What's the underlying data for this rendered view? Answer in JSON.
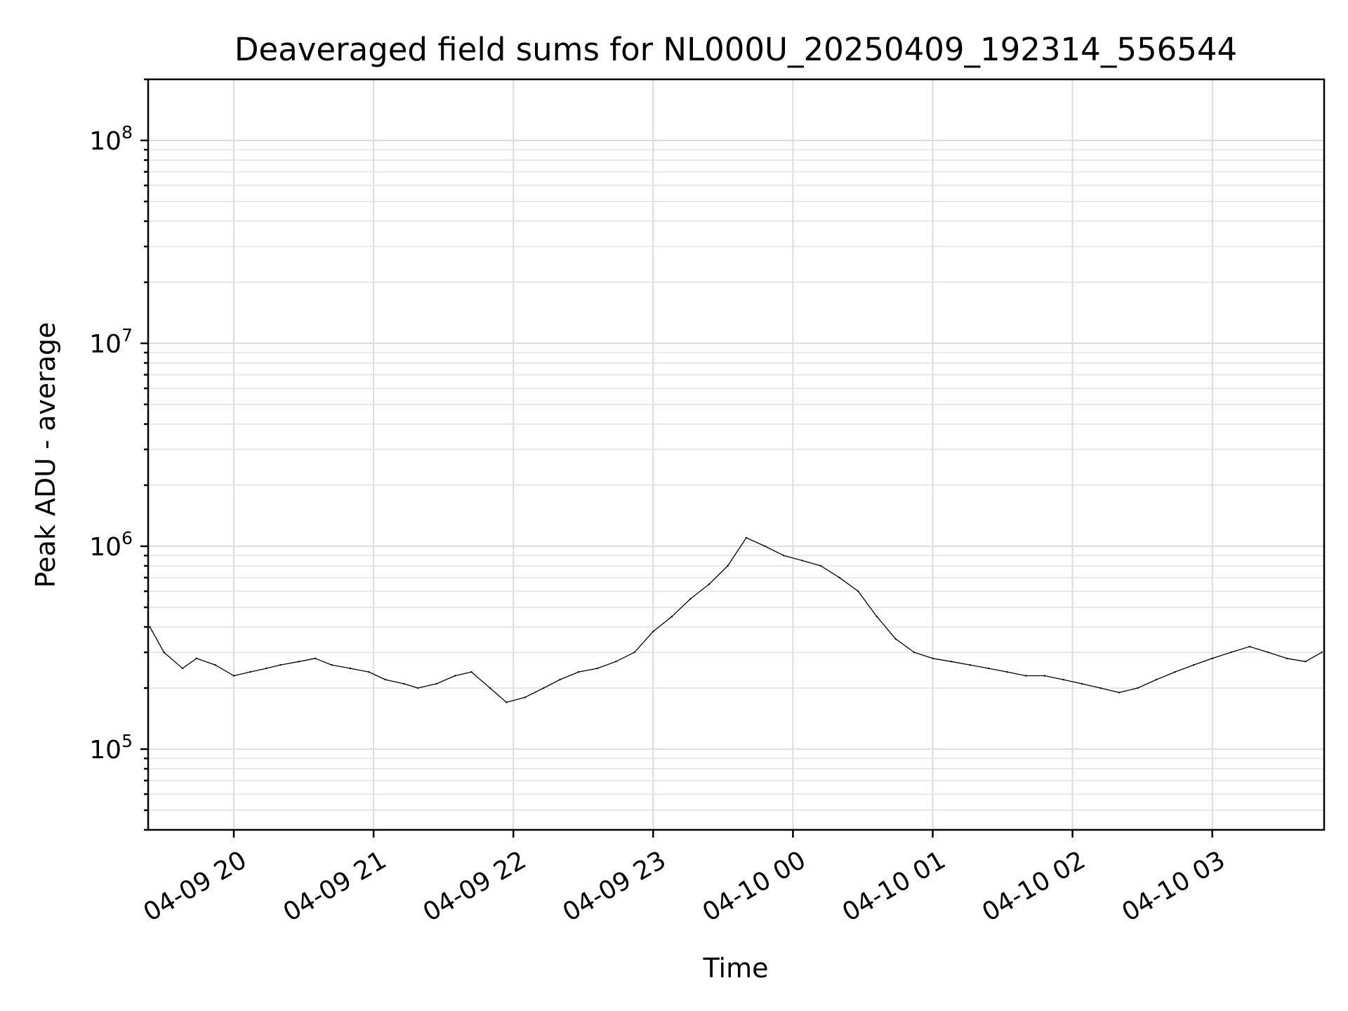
{
  "chart_data": {
    "type": "line",
    "title": "Deaveraged field sums for NL000U_20250409_192314_556544",
    "xlabel": "Time",
    "ylabel": "Peak ADU - average",
    "yscale": "log",
    "ylim": [
      40000,
      200000000
    ],
    "xlim": [
      "2025-04-09 19:23:14",
      "2025-04-10 03:48:00"
    ],
    "x_ticks": [
      {
        "value": "2025-04-09 20:00",
        "label": "04-09 20"
      },
      {
        "value": "2025-04-09 21:00",
        "label": "04-09 21"
      },
      {
        "value": "2025-04-09 22:00",
        "label": "04-09 22"
      },
      {
        "value": "2025-04-09 23:00",
        "label": "04-09 23"
      },
      {
        "value": "2025-04-10 00:00",
        "label": "04-10 00"
      },
      {
        "value": "2025-04-10 01:00",
        "label": "04-10 01"
      },
      {
        "value": "2025-04-10 02:00",
        "label": "04-10 02"
      },
      {
        "value": "2025-04-10 03:00",
        "label": "04-10 03"
      }
    ],
    "y_ticks": [
      {
        "value": 100000,
        "base": "10",
        "exponent": "5"
      },
      {
        "value": 1000000,
        "base": "10",
        "exponent": "6"
      },
      {
        "value": 10000000,
        "base": "10",
        "exponent": "7"
      },
      {
        "value": 100000000,
        "base": "10",
        "exponent": "8"
      }
    ],
    "grid": true,
    "line_color": "#000000",
    "series": [
      {
        "x": [
          "2025-04-09 19:24",
          "2025-04-09 19:30",
          "2025-04-09 19:38",
          "2025-04-09 19:44",
          "2025-04-09 19:52",
          "2025-04-09 20:00",
          "2025-04-09 20:07",
          "2025-04-09 20:14",
          "2025-04-09 20:20",
          "2025-04-09 20:28",
          "2025-04-09 20:35",
          "2025-04-09 20:42",
          "2025-04-09 20:50",
          "2025-04-09 20:58",
          "2025-04-09 21:05",
          "2025-04-09 21:13",
          "2025-04-09 21:19",
          "2025-04-09 21:27",
          "2025-04-09 21:35",
          "2025-04-09 21:42",
          "2025-04-09 21:50",
          "2025-04-09 21:57",
          "2025-04-09 22:05",
          "2025-04-09 22:13",
          "2025-04-09 22:20",
          "2025-04-09 22:28",
          "2025-04-09 22:36",
          "2025-04-09 22:44",
          "2025-04-09 22:52",
          "2025-04-09 23:00",
          "2025-04-09 23:08",
          "2025-04-09 23:16",
          "2025-04-09 23:24",
          "2025-04-09 23:32",
          "2025-04-09 23:40",
          "2025-04-09 23:48",
          "2025-04-09 23:56",
          "2025-04-10 00:04",
          "2025-04-10 00:12",
          "2025-04-10 00:20",
          "2025-04-10 00:28",
          "2025-04-10 00:36",
          "2025-04-10 00:44",
          "2025-04-10 00:52",
          "2025-04-10 01:00",
          "2025-04-10 01:08",
          "2025-04-10 01:16",
          "2025-04-10 01:24",
          "2025-04-10 01:32",
          "2025-04-10 01:40",
          "2025-04-10 01:48",
          "2025-04-10 01:56",
          "2025-04-10 02:04",
          "2025-04-10 02:12",
          "2025-04-10 02:20",
          "2025-04-10 02:28",
          "2025-04-10 02:36",
          "2025-04-10 02:44",
          "2025-04-10 02:52",
          "2025-04-10 03:00",
          "2025-04-10 03:08",
          "2025-04-10 03:16",
          "2025-04-10 03:24",
          "2025-04-10 03:32",
          "2025-04-10 03:40",
          "2025-04-10 03:47"
        ],
        "y": [
          400000,
          300000,
          250000,
          280000,
          260000,
          230000,
          240000,
          250000,
          260000,
          270000,
          280000,
          260000,
          250000,
          240000,
          220000,
          210000,
          200000,
          210000,
          230000,
          240000,
          200000,
          170000,
          180000,
          200000,
          220000,
          240000,
          250000,
          270000,
          300000,
          380000,
          450000,
          550000,
          650000,
          800000,
          1100000,
          1000000,
          900000,
          850000,
          800000,
          700000,
          600000,
          450000,
          350000,
          300000,
          280000,
          270000,
          260000,
          250000,
          240000,
          230000,
          230000,
          220000,
          210000,
          200000,
          190000,
          200000,
          220000,
          240000,
          260000,
          280000,
          300000,
          320000,
          300000,
          280000,
          270000,
          300000
        ]
      }
    ],
    "annotations": []
  }
}
